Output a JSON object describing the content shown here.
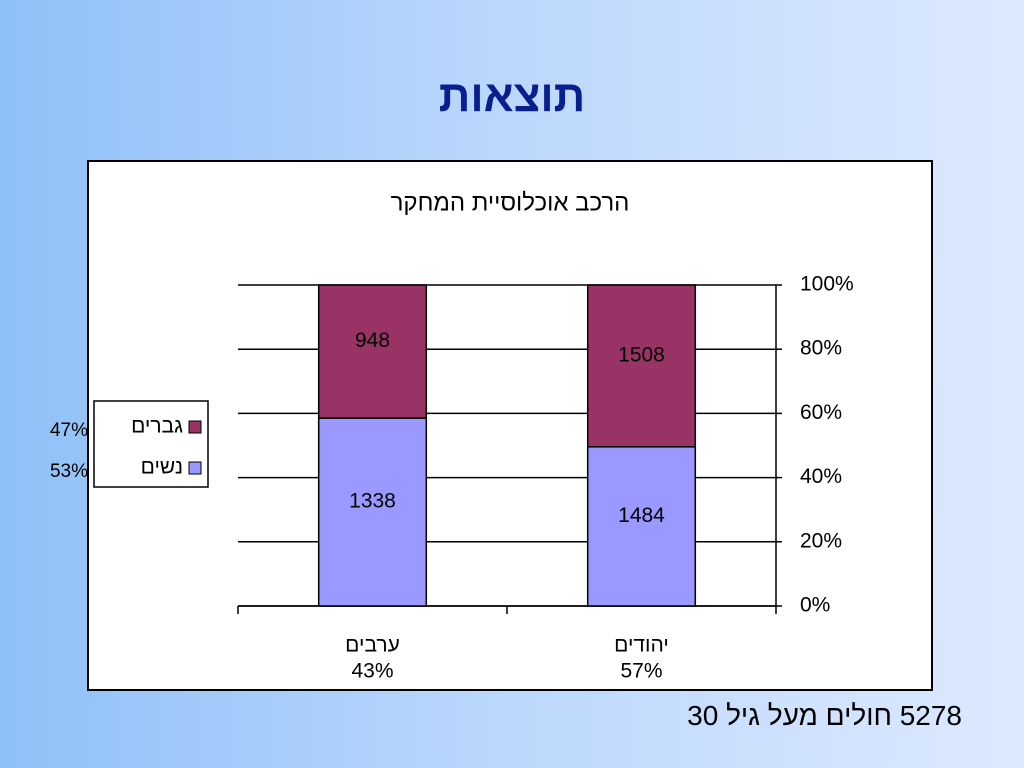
{
  "title": "תוצאות",
  "footnote": "5278 חולים מעל גיל 30",
  "chart_data": {
    "type": "bar",
    "stacking": "percent",
    "title": "הרכב אוכלוסיית המחקר",
    "categories": [
      "ערבים",
      "יהודים"
    ],
    "category_notes": [
      "43%",
      "57%"
    ],
    "series": [
      {
        "name": "נשים",
        "color": "#9999ff",
        "values": [
          1338,
          1484
        ],
        "note": "53%"
      },
      {
        "name": "גברים",
        "color": "#993366",
        "values": [
          948,
          1508
        ],
        "note": "47%"
      }
    ],
    "ylim": [
      0,
      100
    ],
    "yticks": [
      {
        "value": 0,
        "label": "0%"
      },
      {
        "value": 20,
        "label": "20%"
      },
      {
        "value": 40,
        "label": "40%"
      },
      {
        "value": 60,
        "label": "60%"
      },
      {
        "value": 80,
        "label": "80%"
      },
      {
        "value": 100,
        "label": "100%"
      }
    ],
    "y_axis_side": "right",
    "grid": true,
    "legend": "left"
  }
}
